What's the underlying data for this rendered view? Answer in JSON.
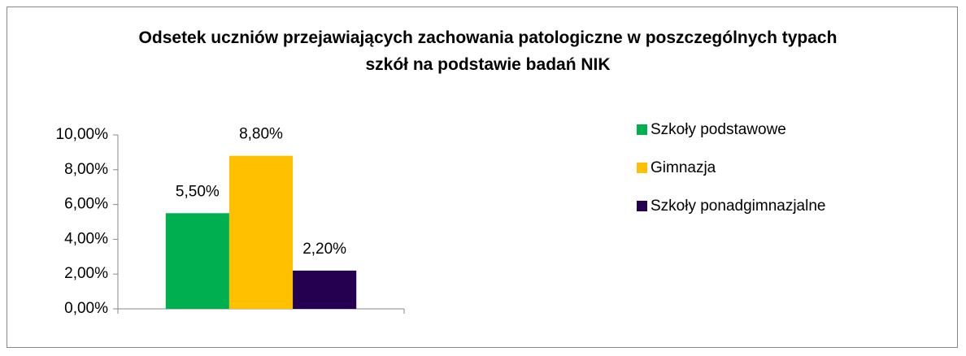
{
  "chart_data": {
    "type": "bar",
    "title": "Odsetek uczniów przejawiających zachowania patologiczne w poszczególnych typach szkół na podstawie badań NIK",
    "categories": [
      null
    ],
    "series": [
      {
        "name": "Szkoły podstawowe",
        "color": "#00b050",
        "values": [
          5.5
        ],
        "value_labels": [
          "5,50%"
        ]
      },
      {
        "name": "Gimnazja",
        "color": "#ffc000",
        "values": [
          8.8
        ],
        "value_labels": [
          "8,80%"
        ]
      },
      {
        "name": "Szkoły ponadgimnazjalne",
        "color": "#250050",
        "values": [
          2.2
        ],
        "value_labels": [
          "2,20%"
        ]
      }
    ],
    "ylim": [
      0,
      10
    ],
    "yticks": [
      {
        "value": 0,
        "label": "0,00%"
      },
      {
        "value": 2,
        "label": "2,00%"
      },
      {
        "value": 4,
        "label": "4,00%"
      },
      {
        "value": 6,
        "label": "6,00%"
      },
      {
        "value": 8,
        "label": "8,00%"
      },
      {
        "value": 10,
        "label": "10,00%"
      }
    ],
    "legend": "right"
  }
}
